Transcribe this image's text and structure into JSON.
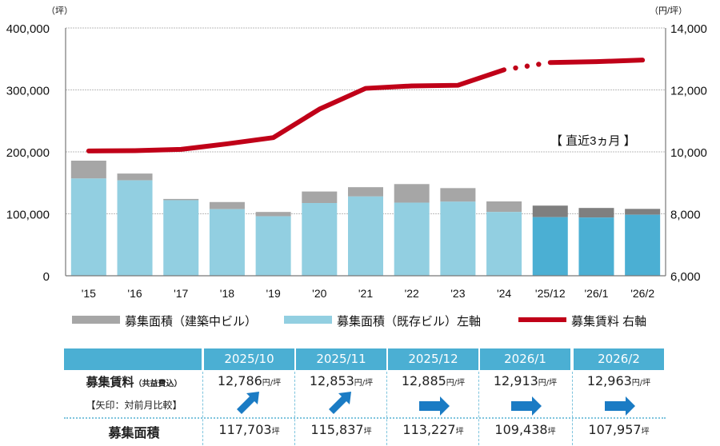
{
  "chart_data": {
    "type": "bar+line",
    "categories": [
      "'15",
      "'16",
      "'17",
      "'18",
      "'19",
      "'20",
      "'21",
      "'22",
      "'23",
      "'24",
      "'25/12",
      "'26/1",
      "'26/2"
    ],
    "highlighted_categories": [
      "'25/12",
      "'26/1",
      "'26/2"
    ],
    "series": [
      {
        "name": "募集面積（既存ビル）左軸",
        "type": "bar",
        "axis": "left",
        "color": "#92CFE1",
        "recent_color": "#4BAFD3",
        "values": [
          157000,
          154000,
          122000,
          107500,
          96000,
          117400,
          128000,
          118000,
          119600,
          103000,
          94600,
          94000,
          98500
        ]
      },
      {
        "name": "募集面積（建築中ビル）",
        "type": "bar",
        "axis": "left",
        "stacked": true,
        "color": "#A6A6A6",
        "recent_color": "#7F7F7F",
        "values": [
          28800,
          11000,
          2000,
          11500,
          7000,
          18600,
          15000,
          30000,
          21900,
          17000,
          18627,
          15438,
          9457
        ]
      },
      {
        "name": "募集賃料 右軸",
        "type": "line",
        "axis": "right",
        "color": "#C00018",
        "values": [
          10030,
          10040,
          10080,
          10260,
          10460,
          11380,
          12050,
          12130,
          12150,
          12650,
          12885,
          12913,
          12963
        ],
        "dotted_segment": [
          "'24",
          "'25/12"
        ]
      }
    ],
    "left_axis": {
      "unit": "（坪）",
      "ylim": [
        0,
        400000
      ],
      "ticks": [
        "0",
        "100,000",
        "200,000",
        "300,000",
        "400,000"
      ]
    },
    "right_axis": {
      "unit": "（円/坪）",
      "ylim": [
        6000,
        14000
      ],
      "ticks": [
        "6,000",
        "8,000",
        "10,000",
        "12,000",
        "14,000"
      ]
    },
    "grid": true,
    "legend_position": "bottom",
    "annotation": "【 直近3ヵ月 】"
  },
  "table": {
    "headers": [
      "2025/10",
      "2025/11",
      "2025/12",
      "2026/1",
      "2026/2"
    ],
    "rent_label": "募集賃料",
    "rent_sublabel": "（共益費込）",
    "arrow_label": "【矢印：対前月比較】",
    "area_label": "募集面積",
    "rent_unit": "円/坪",
    "area_unit": "坪",
    "rent_values": [
      "12,786",
      "12,853",
      "12,885",
      "12,913",
      "12,963"
    ],
    "arrows": [
      "up-right",
      "up-right",
      "right",
      "right",
      "right"
    ],
    "area_values": [
      "117,703",
      "115,837",
      "113,227",
      "109,438",
      "107,957"
    ],
    "arrow_color": "#1A7BC4"
  }
}
